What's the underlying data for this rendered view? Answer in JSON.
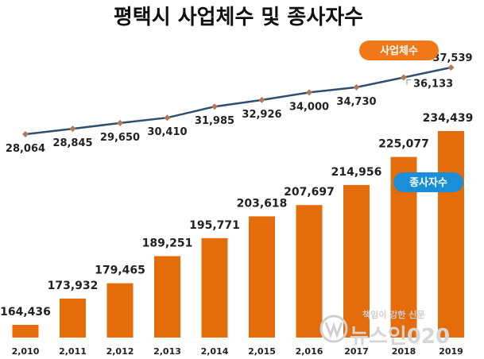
{
  "chart_data": {
    "type": "bar",
    "title": "평택시 사업체수 및 종사자수",
    "categories": [
      "2,010",
      "2,011",
      "2,012",
      "2,013",
      "2,014",
      "2,015",
      "2,016",
      "2017",
      "2018",
      "2019"
    ],
    "series": [
      {
        "name": "사업체수",
        "kind": "line",
        "values": [
          28064,
          28845,
          29650,
          30410,
          31985,
          32926,
          34000,
          34730,
          36133,
          37539
        ],
        "labels": [
          "28,064",
          "28,845",
          "29,650",
          "30,410",
          "31,985",
          "32,926",
          "34,000",
          "34,730",
          "36,133",
          "37,539"
        ],
        "color": "#2f4f6f",
        "marker_color": "#b07a5a"
      },
      {
        "name": "종사자수",
        "kind": "bar",
        "values": [
          164436,
          173932,
          179465,
          189251,
          195771,
          203618,
          207697,
          214956,
          225077,
          234439
        ],
        "labels": [
          "164,436",
          "173,932",
          "179,465",
          "189,251",
          "195,771",
          "203,618",
          "207,697",
          "214,956",
          "225,077",
          "234,439"
        ],
        "color": "#e46c0a"
      }
    ],
    "legend": {
      "line_pill_color": "#f07818",
      "bar_pill_color": "#1a8fd8"
    },
    "grid": false
  },
  "watermark": {
    "tagline": "책임이 강한 신문",
    "brand": "뉴스인020"
  }
}
